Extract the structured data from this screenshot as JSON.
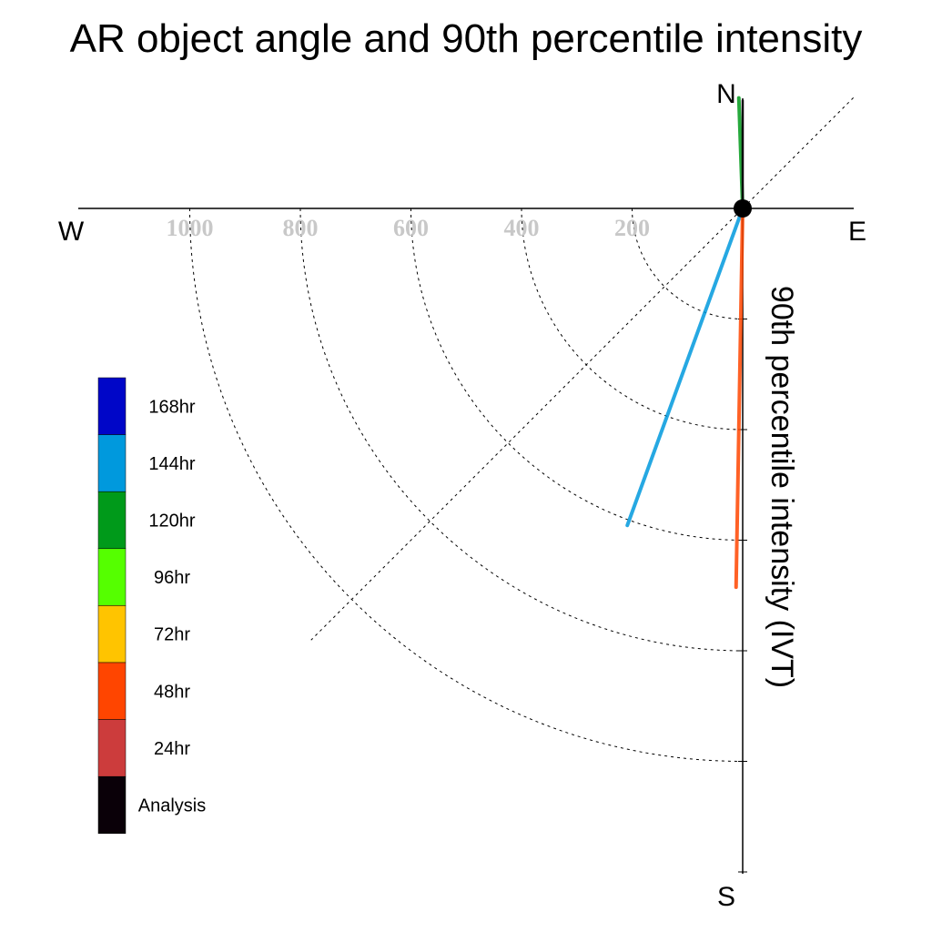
{
  "chart_data": {
    "type": "polar-vector",
    "title": "AR object angle and 90th percentile intensity",
    "ylabel": "90th percentile intensity (IVT)",
    "compass": {
      "north": "N",
      "south": "S",
      "east": "E",
      "west": "W"
    },
    "radial_ticks": [
      200,
      400,
      600,
      800,
      1000
    ],
    "radial_tick_labels": [
      "200",
      "400",
      "600",
      "800",
      "1000"
    ],
    "radial_range": [
      0,
      1200
    ],
    "series": [
      {
        "name": "144hr",
        "color": "#0099dd",
        "angle_deg": 200,
        "intensity": 610
      },
      {
        "name": "48hr",
        "color": "#ff4500",
        "angle_deg": 181,
        "intensity": 685
      },
      {
        "name": "120hr",
        "color": "#009a1a",
        "angle_deg": 358,
        "intensity": 200
      },
      {
        "name": "Analysis",
        "color": "#0a0008",
        "angle_deg": 0,
        "intensity": 195
      }
    ],
    "legend": [
      {
        "label": "168hr",
        "color": "#0006c8"
      },
      {
        "label": "144hr",
        "color": "#0099dd"
      },
      {
        "label": "120hr",
        "color": "#009a1a"
      },
      {
        "label": "96hr",
        "color": "#55ff00"
      },
      {
        "label": "72hr",
        "color": "#ffc400"
      },
      {
        "label": "48hr",
        "color": "#ff4500"
      },
      {
        "label": "24hr",
        "color": "#cc3c3c"
      },
      {
        "label": "Analysis",
        "color": "#0a0008"
      }
    ]
  }
}
